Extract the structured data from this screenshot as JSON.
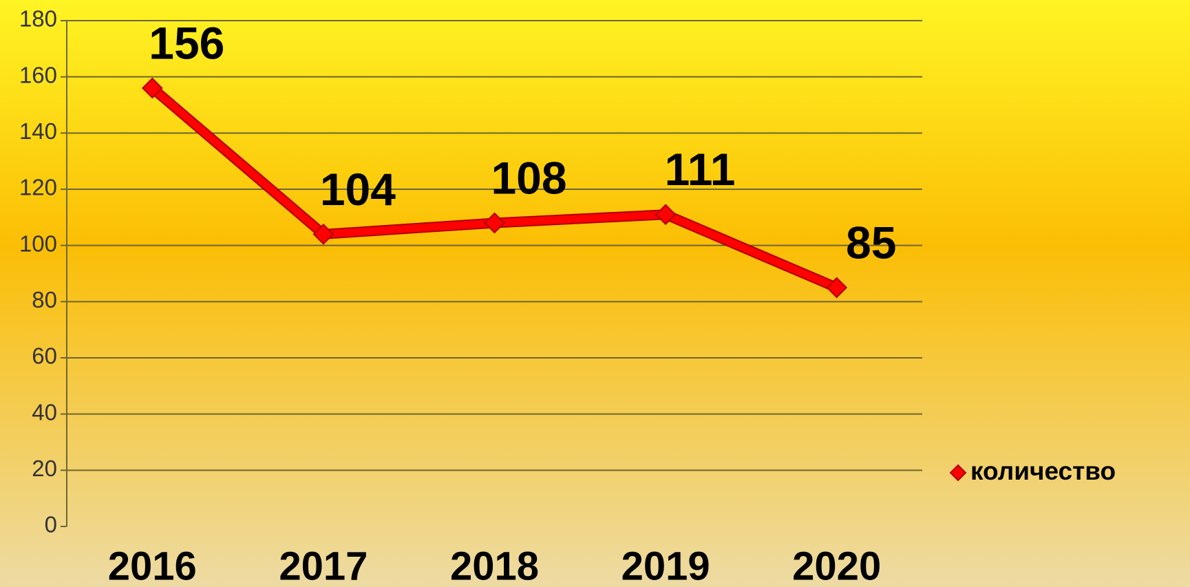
{
  "chart_data": {
    "type": "line",
    "categories": [
      "2016",
      "2017",
      "2018",
      "2019",
      "2020"
    ],
    "series": [
      {
        "name": "количество",
        "color": "#ff0000",
        "values": [
          156,
          104,
          108,
          111,
          85
        ]
      }
    ],
    "ylim": [
      0,
      180
    ],
    "yticks": [
      0,
      20,
      40,
      60,
      80,
      100,
      120,
      140,
      160,
      180
    ],
    "grid": true,
    "legend": "right"
  }
}
